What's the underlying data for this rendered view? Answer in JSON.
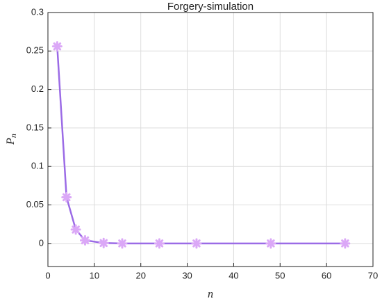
{
  "chart_data": {
    "type": "line",
    "title": "Forgery-simulation",
    "xlabel": "n",
    "ylabel": "P",
    "ylabel_subscript": "n",
    "x": [
      2,
      4,
      6,
      8,
      12,
      16,
      24,
      32,
      48,
      64
    ],
    "values": [
      0.256,
      0.06,
      0.018,
      0.004,
      0.0005,
      0,
      0,
      0,
      0,
      0
    ],
    "color": "#9b6be6",
    "marker_color": "#dba8f7",
    "xlim": [
      0,
      70
    ],
    "xticks": [
      0,
      10,
      20,
      30,
      40,
      50,
      60,
      70
    ],
    "ylim": [
      -0.03,
      0.3
    ],
    "yticks": [
      0,
      0.05,
      0.1,
      0.15,
      0.2,
      0.25,
      0.3
    ],
    "grid": true
  }
}
